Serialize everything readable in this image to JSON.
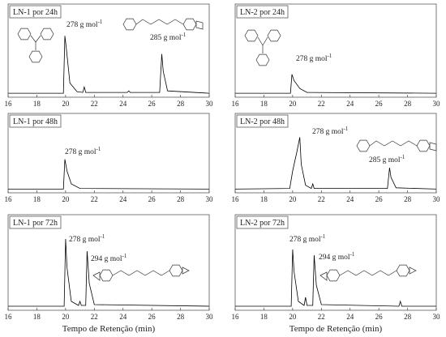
{
  "chart_data": [
    {
      "type": "line",
      "title": "LN-1 por 24h",
      "x": [
        16,
        19.85,
        19.95,
        20.05,
        20.3,
        20.8,
        21.2,
        21.3,
        21.4,
        24.3,
        24.4,
        24.5,
        26.55,
        26.7,
        26.8,
        27.1,
        30
      ],
      "series": [
        {
          "color": "#000000",
          "values": [
            2,
            2,
            75,
            60,
            15,
            4,
            3,
            10,
            3,
            3,
            5,
            3,
            3,
            52,
            30,
            5,
            2
          ]
        }
      ],
      "xlim": [
        16,
        30
      ],
      "xticks": [
        16,
        18,
        20,
        22,
        24,
        26,
        28,
        30
      ],
      "ylim": [
        0,
        100
      ],
      "annotations": [
        {
          "text": "278 g mol",
          "sup": "-1"
        },
        {
          "text": "285 g mol",
          "sup": "-1"
        }
      ]
    },
    {
      "type": "line",
      "title": "LN-2 por 24h",
      "x": [
        16,
        19.85,
        19.95,
        20.1,
        20.5,
        21,
        30
      ],
      "series": [
        {
          "color": "#000000",
          "values": [
            2,
            2,
            26,
            18,
            8,
            3,
            2
          ]
        }
      ],
      "xlim": [
        16,
        30
      ],
      "xticks": [
        16,
        18,
        20,
        22,
        24,
        26,
        28,
        30
      ],
      "ylim": [
        0,
        100
      ],
      "annotations": [
        {
          "text": "278 g mol",
          "sup": "-1"
        }
      ]
    },
    {
      "type": "line",
      "title": "LN-1 por 48h",
      "x": [
        16,
        19.85,
        19.95,
        20.1,
        20.4,
        21,
        30
      ],
      "series": [
        {
          "color": "#000000",
          "values": [
            2,
            2,
            48,
            30,
            10,
            3,
            2
          ]
        }
      ],
      "xlim": [
        16,
        30
      ],
      "xticks": [
        16,
        18,
        20,
        22,
        24,
        26,
        28,
        30
      ],
      "ylim": [
        0,
        100
      ],
      "annotations": [
        {
          "text": "278 g mol",
          "sup": "-1"
        }
      ]
    },
    {
      "type": "line",
      "title": "LN-2 por 48h",
      "x": [
        16,
        19.8,
        20.0,
        20.3,
        20.5,
        20.6,
        20.9,
        21.3,
        21.4,
        21.5,
        26.6,
        26.75,
        26.85,
        27.2,
        30
      ],
      "series": [
        {
          "color": "#000000",
          "values": [
            2,
            3,
            30,
            60,
            82,
            40,
            8,
            3,
            10,
            3,
            3,
            35,
            20,
            4,
            2
          ]
        }
      ],
      "xlim": [
        16,
        30
      ],
      "xticks": [
        16,
        18,
        20,
        22,
        24,
        26,
        28,
        30
      ],
      "ylim": [
        0,
        100
      ],
      "annotations": [
        {
          "text": "278 g mol",
          "sup": "-1"
        },
        {
          "text": "285 g mol",
          "sup": "-1"
        }
      ]
    },
    {
      "type": "line",
      "title": "LN-1 por 72h",
      "xlabel": "Tempo de Retenção (min)",
      "x": [
        16,
        19.9,
        20.0,
        20.1,
        20.4,
        20.9,
        21.0,
        21.1,
        21.4,
        21.5,
        21.65,
        22,
        30
      ],
      "series": [
        {
          "color": "#000000",
          "values": [
            2,
            2,
            85,
            50,
            8,
            3,
            8,
            3,
            3,
            70,
            30,
            4,
            2
          ]
        }
      ],
      "xlim": [
        16,
        30
      ],
      "xticks": [
        16,
        18,
        20,
        22,
        24,
        26,
        28,
        30
      ],
      "ylim": [
        0,
        100
      ],
      "annotations": [
        {
          "text": "278 g mol",
          "sup": "-1"
        },
        {
          "text": "294 g mol",
          "sup": "-1"
        }
      ]
    },
    {
      "type": "line",
      "title": "LN-2 por 72h",
      "xlabel": "Tempo de Retenção (min)",
      "x": [
        16,
        19.9,
        20.0,
        20.1,
        20.4,
        20.8,
        20.9,
        21.0,
        21.4,
        21.5,
        21.65,
        22,
        27.4,
        27.5,
        27.6,
        30
      ],
      "series": [
        {
          "color": "#000000",
          "values": [
            2,
            2,
            72,
            45,
            8,
            3,
            13,
            3,
            3,
            65,
            28,
            4,
            2,
            8,
            2,
            2
          ]
        }
      ],
      "xlim": [
        16,
        30
      ],
      "xticks": [
        16,
        18,
        20,
        22,
        24,
        26,
        28,
        30
      ],
      "ylim": [
        0,
        100
      ],
      "annotations": [
        {
          "text": "278 g mol",
          "sup": "-1"
        },
        {
          "text": "294 g mol",
          "sup": "-1"
        }
      ]
    }
  ]
}
